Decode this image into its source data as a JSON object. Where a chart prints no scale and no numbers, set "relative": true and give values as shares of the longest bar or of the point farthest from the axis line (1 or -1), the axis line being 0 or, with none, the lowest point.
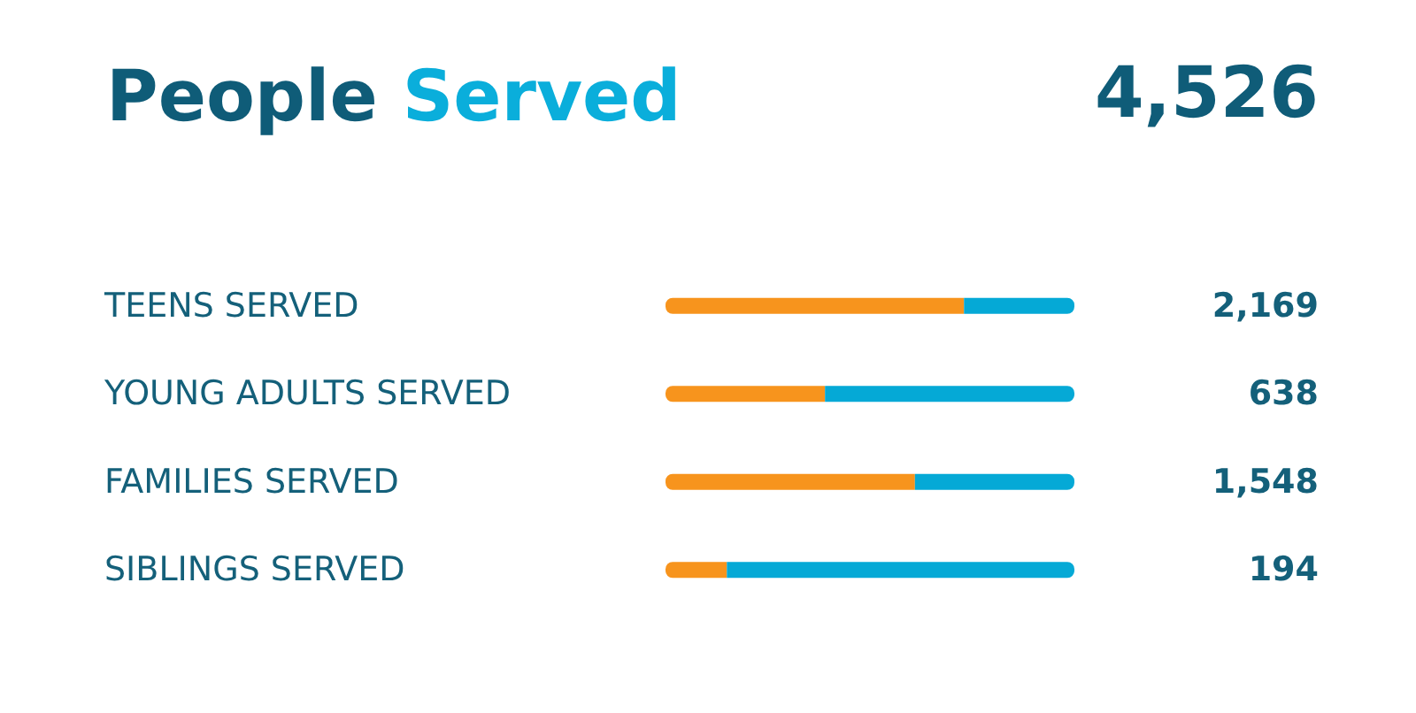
{
  "chart_data": {
    "type": "bar",
    "orientation": "horizontal",
    "stacked": true,
    "relative": true,
    "title": "People Served",
    "annotations": [
      "4,526",
      "2,169",
      "638",
      "1,548",
      "194"
    ],
    "categories": [
      "TEENS SERVED",
      "YOUNG ADULTS SERVED",
      "FAMILIES SERVED",
      "SIBLINGS SERVED"
    ],
    "series": [
      {
        "color": "#f7941d",
        "values": [
          0.73,
          0.39,
          0.61,
          0.15
        ]
      },
      {
        "color": "#05a9d6",
        "values": [
          0.27,
          0.61,
          0.39,
          0.85
        ]
      }
    ]
  }
}
